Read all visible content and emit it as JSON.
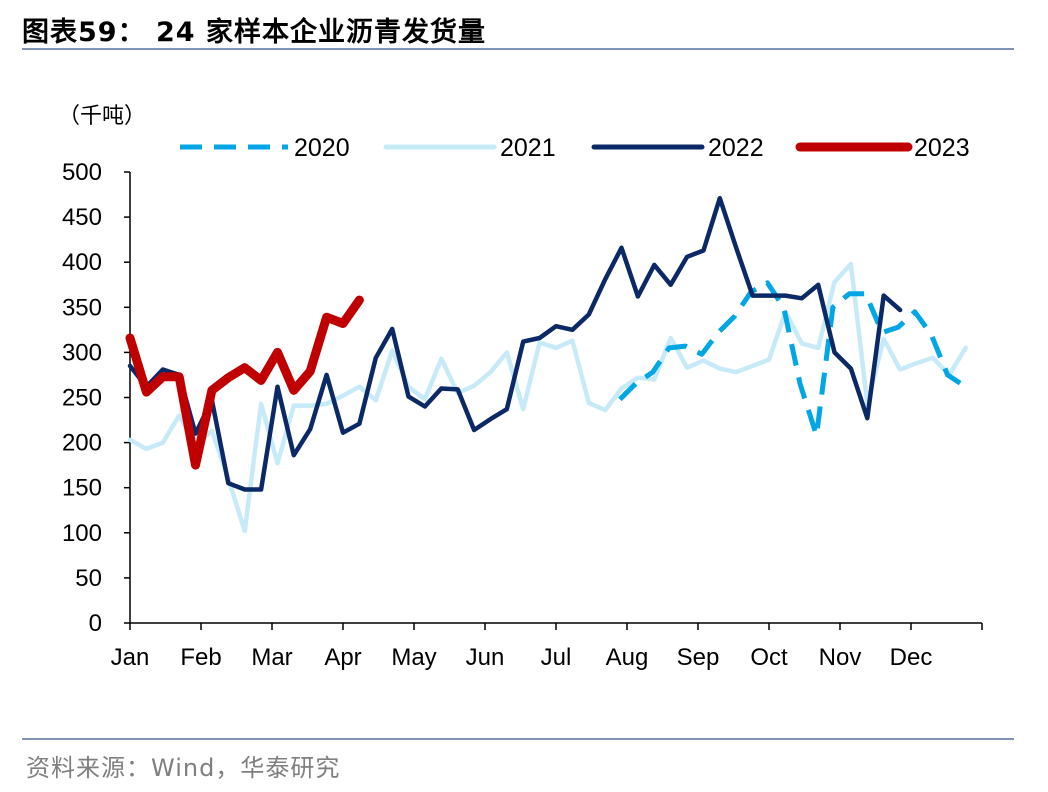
{
  "header": {
    "title": "图表59：  24 家样本企业沥青发货量"
  },
  "footer": {
    "source": "资料来源：Wind，华泰研究"
  },
  "chart_data": {
    "type": "line",
    "unit_label": "（千吨）",
    "xlabel": "",
    "ylabel": "",
    "ylim": [
      0,
      500
    ],
    "yticks": [
      0,
      50,
      100,
      150,
      200,
      250,
      300,
      350,
      400,
      450,
      500
    ],
    "month_labels": [
      "Jan",
      "Feb",
      "Mar",
      "Apr",
      "May",
      "Jun",
      "Jul",
      "Aug",
      "Sep",
      "Oct",
      "Nov",
      "Dec"
    ],
    "legend_position": "top",
    "grid": false,
    "series": [
      {
        "name": "2020",
        "color": "#00a6e6",
        "style": "dashed",
        "points": [
          [
            29.9,
            248
          ],
          [
            30.9,
            266
          ],
          [
            31.9,
            278
          ],
          [
            32.9,
            305
          ],
          [
            33.9,
            307
          ],
          [
            34.9,
            298
          ],
          [
            35.9,
            322
          ],
          [
            36.9,
            340
          ],
          [
            37.9,
            367
          ],
          [
            38.9,
            377
          ],
          [
            39.9,
            350
          ],
          [
            40.9,
            265
          ],
          [
            41.9,
            208
          ],
          [
            42.9,
            350
          ],
          [
            43.9,
            365
          ],
          [
            44.9,
            365
          ],
          [
            45.9,
            322
          ],
          [
            46.9,
            328
          ],
          [
            47.9,
            345
          ],
          [
            48.9,
            320
          ],
          [
            49.9,
            275
          ],
          [
            50.9,
            263
          ]
        ]
      },
      {
        "name": "2021",
        "color": "#c7eaf8",
        "style": "solid",
        "points": [
          [
            0,
            203
          ],
          [
            1,
            193
          ],
          [
            2,
            200
          ],
          [
            3,
            230
          ],
          [
            4,
            198
          ],
          [
            5,
            213
          ],
          [
            6,
            160
          ],
          [
            7,
            102
          ],
          [
            8,
            243
          ],
          [
            9,
            177
          ],
          [
            10,
            241
          ],
          [
            11,
            241
          ],
          [
            12,
            243
          ],
          [
            13,
            252
          ],
          [
            14,
            262
          ],
          [
            15,
            247
          ],
          [
            16,
            302
          ],
          [
            17,
            262
          ],
          [
            18,
            248
          ],
          [
            19,
            293
          ],
          [
            20,
            255
          ],
          [
            21,
            263
          ],
          [
            22,
            278
          ],
          [
            23,
            300
          ],
          [
            24,
            237
          ],
          [
            25,
            311
          ],
          [
            26,
            305
          ],
          [
            27,
            313
          ],
          [
            28,
            244
          ],
          [
            29,
            236
          ],
          [
            30,
            260
          ],
          [
            31,
            272
          ],
          [
            32,
            270
          ],
          [
            33,
            316
          ],
          [
            34,
            283
          ],
          [
            35,
            291
          ],
          [
            36,
            282
          ],
          [
            37,
            278
          ],
          [
            38,
            285
          ],
          [
            39,
            292
          ],
          [
            40,
            345
          ],
          [
            41,
            310
          ],
          [
            42,
            305
          ],
          [
            43,
            378
          ],
          [
            44,
            398
          ],
          [
            45,
            243
          ],
          [
            46,
            315
          ],
          [
            47,
            281
          ],
          [
            48,
            288
          ],
          [
            49,
            294
          ],
          [
            50,
            275
          ],
          [
            51,
            305
          ]
        ]
      },
      {
        "name": "2022",
        "color": "#0b2966",
        "style": "solid",
        "points": [
          [
            0,
            285
          ],
          [
            1,
            262
          ],
          [
            2,
            281
          ],
          [
            3,
            275
          ],
          [
            4,
            210
          ],
          [
            5,
            247
          ],
          [
            6,
            155
          ],
          [
            7,
            148
          ],
          [
            8,
            148
          ],
          [
            9,
            262
          ],
          [
            10,
            186
          ],
          [
            11,
            215
          ],
          [
            12,
            275
          ],
          [
            13,
            211
          ],
          [
            14,
            221
          ],
          [
            15,
            294
          ],
          [
            16,
            326
          ],
          [
            17,
            251
          ],
          [
            18,
            240
          ],
          [
            19,
            260
          ],
          [
            20,
            259
          ],
          [
            21,
            214
          ],
          [
            22,
            226
          ],
          [
            23,
            237
          ],
          [
            24,
            312
          ],
          [
            25,
            316
          ],
          [
            26,
            329
          ],
          [
            27,
            325
          ],
          [
            28,
            342
          ],
          [
            29,
            381
          ],
          [
            30,
            416
          ],
          [
            31,
            362
          ],
          [
            32,
            397
          ],
          [
            33,
            375
          ],
          [
            34,
            406
          ],
          [
            35,
            413
          ],
          [
            36,
            471
          ],
          [
            37,
            416
          ],
          [
            38,
            363
          ],
          [
            39,
            363
          ],
          [
            40,
            363
          ],
          [
            41,
            360
          ],
          [
            42,
            375
          ],
          [
            43,
            300
          ],
          [
            44,
            282
          ],
          [
            45,
            227
          ],
          [
            46,
            363
          ],
          [
            47,
            347
          ]
        ]
      },
      {
        "name": "2023",
        "color": "#c00000",
        "style": "solid",
        "points": [
          [
            0,
            316
          ],
          [
            1,
            256
          ],
          [
            2,
            273
          ],
          [
            3,
            273
          ],
          [
            4,
            175
          ],
          [
            5,
            258
          ],
          [
            6,
            272
          ],
          [
            7,
            283
          ],
          [
            8,
            269
          ],
          [
            9,
            300
          ],
          [
            10,
            258
          ],
          [
            11,
            279
          ],
          [
            12,
            339
          ],
          [
            13,
            332
          ],
          [
            14,
            358
          ]
        ]
      }
    ]
  }
}
